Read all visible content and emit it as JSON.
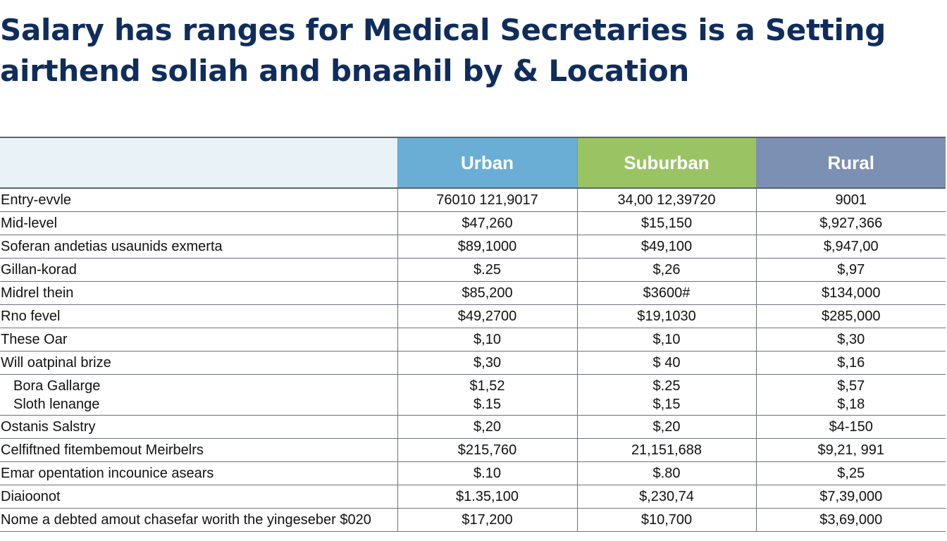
{
  "title": {
    "line1": "Salary has ranges for Medical Secretaries is a Setting",
    "line2": "airthend soliah and bnaahil by & Location"
  },
  "columns": [
    "Urban",
    "Suburban",
    "Rural"
  ],
  "rows": [
    {
      "label": "Entry-evvle",
      "urban": "76010 121,9017",
      "suburban": "34,00 12,39720",
      "rural": "9001"
    },
    {
      "label": "Mid-level",
      "urban": "$47,260",
      "suburban": "$15,150",
      "rural": "$,927,366"
    },
    {
      "label": "Soferan andetias usaunids exmerta",
      "urban": "$89,1000",
      "suburban": "$49,100",
      "rural": "$,947,00"
    },
    {
      "label": "Gillan-korad",
      "urban": "$.25",
      "suburban": "$,26",
      "rural": "$,97"
    },
    {
      "label": "Midrel thein",
      "urban": "$85,200",
      "suburban": "$3600#",
      "rural": "$134,000"
    },
    {
      "label": "Rno fevel",
      "urban": "$49,2700",
      "suburban": "$19,1030",
      "rural": "$285,000"
    },
    {
      "label": "These Oar",
      "urban": "$,10",
      "suburban": "$,10",
      "rural": "$,30"
    },
    {
      "label": "Will oatpinal brize",
      "urban": "$,30",
      "suburban": "$ 40",
      "rural": "$,16"
    },
    {
      "label": "Bora Gallarge",
      "label2": "Sloth lenange",
      "urban": "$1,52",
      "urban2": "$.15",
      "suburban": "$.25",
      "suburban2": "$,15",
      "rural": "$,57",
      "rural2": "$,18"
    },
    {
      "label": "Ostanis Salstry",
      "urban": "$,20",
      "suburban": "$,20",
      "rural": "$4-150"
    },
    {
      "label": "Celfiftned fitembemout Meirbelrs",
      "urban": "$215,760",
      "suburban": "21,151,688",
      "rural": "$9,21, 991"
    },
    {
      "label": "Emar opentation incounice asears",
      "urban": "$.10",
      "suburban": "$.80",
      "rural": "$,25"
    },
    {
      "label": "Diaioonot",
      "urban": "$1.35,100",
      "suburban": "$,230,74",
      "rural": "$7,39,000"
    },
    {
      "label": "Nome a debted amout chasefar worith the yingeseber $020",
      "urban": "$17,200",
      "suburban": "$10,700",
      "rural": "$3,69,000"
    }
  ]
}
